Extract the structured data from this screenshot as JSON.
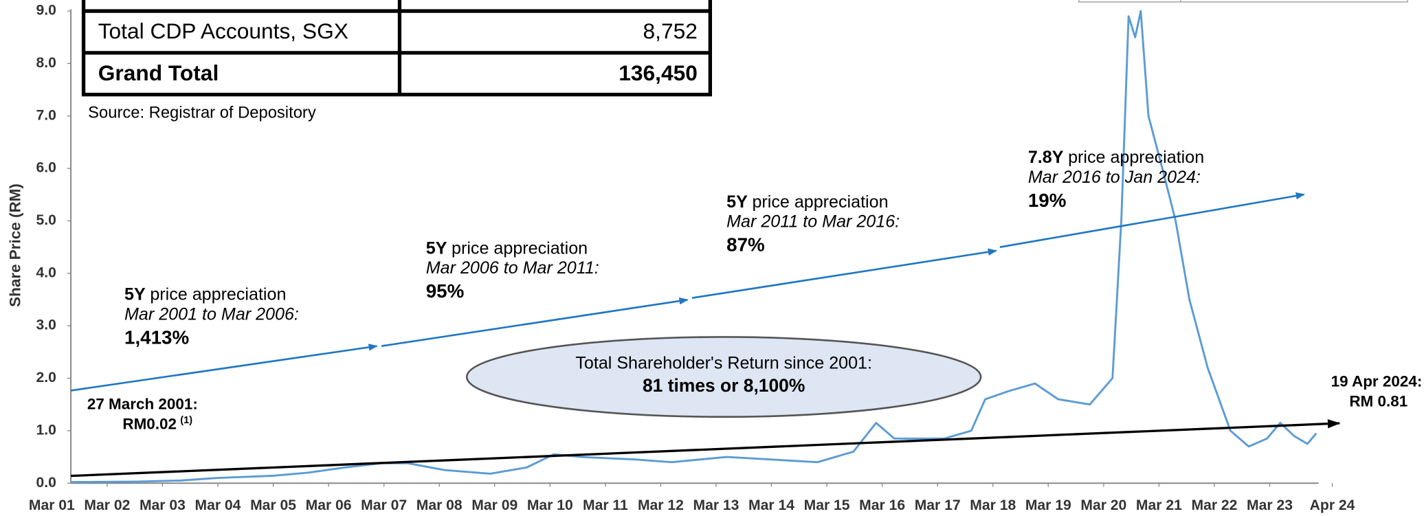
{
  "chart_data": {
    "type": "line",
    "y_axis_label": "Share Price (RM)",
    "ylim": [
      0,
      9
    ],
    "yticks": [
      {
        "value": 0,
        "label": "0.0"
      },
      {
        "value": 1,
        "label": "1.0"
      },
      {
        "value": 2,
        "label": "2.0"
      },
      {
        "value": 3,
        "label": "3.0"
      },
      {
        "value": 4,
        "label": "4.0"
      },
      {
        "value": 5,
        "label": "5.0"
      },
      {
        "value": 6,
        "label": "6.0"
      },
      {
        "value": 7,
        "label": "7.0"
      },
      {
        "value": 8,
        "label": "8.0"
      },
      {
        "value": 9,
        "label": "9.0"
      }
    ],
    "xlim": [
      2001.17,
      2024.3
    ],
    "xticks": [
      {
        "value": 2001.17,
        "label": "Mar 01"
      },
      {
        "value": 2002.17,
        "label": "Mar 02"
      },
      {
        "value": 2003.17,
        "label": "Mar 03"
      },
      {
        "value": 2004.17,
        "label": "Mar 04"
      },
      {
        "value": 2005.17,
        "label": "Mar 05"
      },
      {
        "value": 2006.17,
        "label": "Mar 06"
      },
      {
        "value": 2007.17,
        "label": "Mar 07"
      },
      {
        "value": 2008.17,
        "label": "Mar 08"
      },
      {
        "value": 2009.17,
        "label": "Mar 09"
      },
      {
        "value": 2010.17,
        "label": "Mar 10"
      },
      {
        "value": 2011.17,
        "label": "Mar 11"
      },
      {
        "value": 2012.17,
        "label": "Mar 12"
      },
      {
        "value": 2013.17,
        "label": "Mar 13"
      },
      {
        "value": 2014.17,
        "label": "Mar 14"
      },
      {
        "value": 2015.17,
        "label": "Mar 15"
      },
      {
        "value": 2016.17,
        "label": "Mar 16"
      },
      {
        "value": 2017.17,
        "label": "Mar 17"
      },
      {
        "value": 2018.17,
        "label": "Mar 18"
      },
      {
        "value": 2019.17,
        "label": "Mar 19"
      },
      {
        "value": 2020.17,
        "label": "Mar 20"
      },
      {
        "value": 2021.17,
        "label": "Mar 21"
      },
      {
        "value": 2022.17,
        "label": "Mar 22"
      },
      {
        "value": 2023.17,
        "label": "Mar 23"
      },
      {
        "value": 2024.3,
        "label": "Apr 24"
      }
    ],
    "series": [
      {
        "color": "#5b9bd5",
        "x": [
          2001.51,
          2002.7,
          2003.5,
          2004.17,
          2005.15,
          2005.8,
          2006.47,
          2007.12,
          2007.6,
          2008.27,
          2009.09,
          2009.75,
          2010.24,
          2010.73,
          2011.72,
          2012.37,
          2013.36,
          2014.18,
          2015.0,
          2015.65,
          2016.06,
          2016.39,
          2017.29,
          2017.78,
          2018.03,
          2018.44,
          2018.93,
          2019.35,
          2019.92,
          2020.33,
          2020.49,
          2020.62,
          2020.74,
          2020.84,
          2020.98,
          2021.23,
          2021.47,
          2021.72,
          2022.05,
          2022.46,
          2022.79,
          2023.12,
          2023.36,
          2023.61,
          2023.85,
          2024.01
        ],
        "values": [
          0.02,
          0.03,
          0.05,
          0.1,
          0.14,
          0.2,
          0.3,
          0.38,
          0.38,
          0.25,
          0.18,
          0.3,
          0.55,
          0.5,
          0.45,
          0.4,
          0.5,
          0.45,
          0.4,
          0.6,
          1.15,
          0.85,
          0.85,
          1.0,
          1.6,
          1.75,
          1.9,
          1.6,
          1.5,
          2.0,
          5.0,
          8.9,
          8.5,
          9.0,
          7.0,
          6.0,
          5.0,
          3.5,
          2.2,
          1.0,
          0.7,
          0.85,
          1.15,
          0.9,
          0.75,
          0.95
        ]
      }
    ],
    "annotations": [
      {
        "bold": "5Y",
        "text": "price appreciation",
        "period": "Mar 2001 to Mar 2006:",
        "value": "1,413%"
      },
      {
        "bold": "5Y",
        "text": "price appreciation",
        "period": "Mar 2006 to Mar 2011:",
        "value": "95%"
      },
      {
        "bold": "5Y",
        "text": "price appreciation",
        "period": "Mar 2011 to Mar 2016:",
        "value": "87%"
      },
      {
        "bold": "7.8Y",
        "text": "price appreciation",
        "period": "Mar 2016 to Jan 2024:",
        "value": "19%"
      }
    ],
    "total_return": {
      "line1": "Total Shareholder's Return since 2001:",
      "line2": "81 times or 8,100%"
    },
    "start_label": {
      "date": "27 March 2001:",
      "price": "RM0.02",
      "note": "(1)"
    },
    "end_label": {
      "date": "19 Apr 2024:",
      "price": "RM 0.81"
    },
    "table": {
      "rows": [
        [
          "Total CDP Accounts, SGX",
          "8,752"
        ],
        [
          "Grand Total",
          "136,450"
        ]
      ]
    },
    "source": "Source: Registrar of Depository"
  }
}
